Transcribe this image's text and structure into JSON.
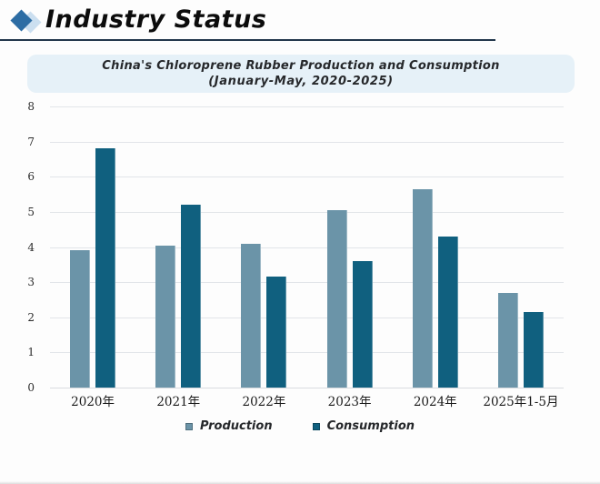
{
  "header": {
    "title": "Industry Status"
  },
  "chart": {
    "title_line1": "China's Chloroprene Rubber Production and Consumption",
    "title_line2": "(January-May, 2020-2025)"
  },
  "chart_data": {
    "type": "bar",
    "title": "China's Chloroprene Rubber Production and Consumption (January-May, 2020-2025)",
    "categories": [
      "2020年",
      "2021年",
      "2022年",
      "2023年",
      "2024年",
      "2025年1-5月"
    ],
    "series": [
      {
        "name": "Production",
        "color": "#6b94a8",
        "values": [
          3.9,
          4.05,
          4.1,
          5.05,
          5.65,
          2.7
        ]
      },
      {
        "name": "Consumption",
        "color": "#10607f",
        "values": [
          6.8,
          5.2,
          3.15,
          3.6,
          4.3,
          2.15
        ]
      }
    ],
    "xlabel": "",
    "ylabel": "",
    "ylim": [
      0,
      8
    ],
    "ytick_step": 1,
    "grid": true,
    "legend_position": "bottom"
  },
  "colors": {
    "production": "#6b94a8",
    "consumption": "#10607f",
    "title_band_bg": "#e6f1f8",
    "header_rule": "#22374b",
    "diamond_dark": "#2d6da4",
    "diamond_light": "#cbdff0",
    "gridline": "#e2e5e9"
  }
}
